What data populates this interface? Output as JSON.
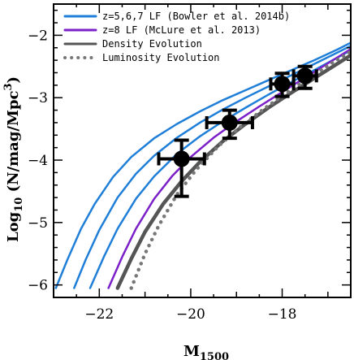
{
  "chart_data": {
    "type": "line",
    "xlabel": "M",
    "xlabel_sub": "1500",
    "ylabel": "Log",
    "ylabel_sub": "10",
    "ylabel_rest": " (N/mag/Mpc",
    "ylabel_sup": "3",
    "ylabel_close": ")",
    "xlim": [
      -23,
      -16.5
    ],
    "ylim": [
      -6.2,
      -1.5
    ],
    "x_reversed": false,
    "grid": false,
    "x_ticks": [
      -22,
      -20,
      -18
    ],
    "x_tick_labels": [
      "−22",
      "−20",
      "−18"
    ],
    "y_ticks": [
      -6,
      -5,
      -4,
      -3,
      -2
    ],
    "y_tick_labels": [
      "−6",
      "−5",
      "−4",
      "−3",
      "−2"
    ],
    "legend_position": "top-left",
    "legend": [
      {
        "label": "z=5,6,7 LF (Bowler et al. 2014b)",
        "color": "#1f7fd8",
        "style": "solid"
      },
      {
        "label": "z=8 LF (McLure et al. 2013)",
        "color": "#7b1fc9",
        "style": "solid"
      },
      {
        "label": "Density Evolution",
        "color": "#555555",
        "style": "solid"
      },
      {
        "label": "Luminosity Evolution",
        "color": "#777777",
        "style": "dotted"
      }
    ],
    "series": [
      {
        "group": "z=5,6,7 LF (Bowler et al. 2014b)",
        "color": "#1f7fd8",
        "dash": "",
        "width": 2.5,
        "x": [
          -22.95,
          -22.7,
          -22.4,
          -22.1,
          -21.7,
          -21.3,
          -20.8,
          -20.3,
          -19.8,
          -19.3,
          -18.8,
          -18.3,
          -17.8,
          -17.3,
          -16.8,
          -16.5
        ],
        "y": [
          -6.05,
          -5.6,
          -5.1,
          -4.7,
          -4.27,
          -3.95,
          -3.65,
          -3.42,
          -3.22,
          -3.04,
          -2.88,
          -2.72,
          -2.56,
          -2.4,
          -2.23,
          -2.12
        ]
      },
      {
        "group": "z=5,6,7 LF (Bowler et al. 2014b)",
        "color": "#1f7fd8",
        "dash": "",
        "width": 2.5,
        "x": [
          -22.55,
          -22.3,
          -22.0,
          -21.6,
          -21.2,
          -20.8,
          -20.3,
          -19.8,
          -19.3,
          -18.8,
          -18.3,
          -17.8,
          -17.3,
          -16.8,
          -16.5
        ],
        "y": [
          -6.05,
          -5.6,
          -5.12,
          -4.6,
          -4.22,
          -3.93,
          -3.64,
          -3.4,
          -3.19,
          -3.0,
          -2.82,
          -2.64,
          -2.46,
          -2.28,
          -2.17
        ]
      },
      {
        "group": "z=5,6,7 LF (Bowler et al. 2014b)",
        "color": "#1f7fd8",
        "dash": "",
        "width": 2.5,
        "x": [
          -22.2,
          -21.9,
          -21.6,
          -21.2,
          -20.8,
          -20.3,
          -19.8,
          -19.3,
          -18.8,
          -18.3,
          -17.8,
          -17.3,
          -16.8,
          -16.5
        ],
        "y": [
          -6.05,
          -5.55,
          -5.1,
          -4.62,
          -4.26,
          -3.9,
          -3.62,
          -3.38,
          -3.16,
          -2.95,
          -2.75,
          -2.56,
          -2.36,
          -2.24
        ]
      },
      {
        "group": "z=8 LF (McLure et al. 2013)",
        "color": "#7b1fc9",
        "dash": "",
        "width": 2.5,
        "x": [
          -21.8,
          -21.5,
          -21.2,
          -20.8,
          -20.4,
          -20.0,
          -19.5,
          -19.0,
          -18.5,
          -18.0,
          -17.5,
          -17.0,
          -16.5
        ],
        "y": [
          -6.05,
          -5.55,
          -5.1,
          -4.62,
          -4.25,
          -3.95,
          -3.64,
          -3.38,
          -3.14,
          -2.91,
          -2.68,
          -2.45,
          -2.22
        ]
      },
      {
        "group": "Density Evolution",
        "color": "#555555",
        "dash": "",
        "width": 4.5,
        "x": [
          -21.6,
          -21.3,
          -21.0,
          -20.6,
          -20.2,
          -19.8,
          -19.3,
          -18.8,
          -18.3,
          -17.8,
          -17.3,
          -16.8,
          -16.5
        ],
        "y": [
          -6.05,
          -5.58,
          -5.15,
          -4.7,
          -4.34,
          -4.03,
          -3.7,
          -3.42,
          -3.16,
          -2.92,
          -2.69,
          -2.46,
          -2.32
        ]
      },
      {
        "group": "Luminosity Evolution",
        "color": "#777777",
        "dash": "0.1 8",
        "width": 4.5,
        "x": [
          -21.3,
          -21.0,
          -20.7,
          -20.3,
          -19.9,
          -19.4,
          -18.9,
          -18.4,
          -17.9,
          -17.4,
          -16.9,
          -16.5
        ],
        "y": [
          -6.05,
          -5.5,
          -5.05,
          -4.55,
          -4.17,
          -3.78,
          -3.46,
          -3.18,
          -2.92,
          -2.68,
          -2.44,
          -2.26
        ]
      }
    ],
    "points": [
      {
        "x": -20.2,
        "y": -3.98,
        "xerr": 0.5,
        "yerr_low": 0.6,
        "yerr_high": 0.3
      },
      {
        "x": -19.15,
        "y": -3.4,
        "xerr": 0.5,
        "yerr_low": 0.25,
        "yerr_high": 0.2
      },
      {
        "x": -18.0,
        "y": -2.78,
        "xerr": 0.25,
        "yerr_low": 0.2,
        "yerr_high": 0.17
      },
      {
        "x": -17.5,
        "y": -2.65,
        "xerr": 0.25,
        "yerr_low": 0.2,
        "yerr_high": 0.15
      }
    ]
  }
}
